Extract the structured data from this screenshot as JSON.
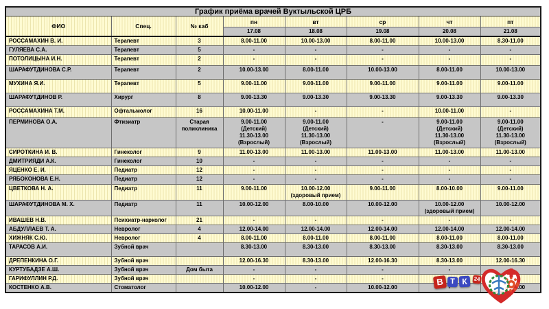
{
  "page": {
    "title": "График приёма врачей Вуктыльской ЦРБ"
  },
  "table": {
    "columns": {
      "fio": "ФИО",
      "spec": "Спец.",
      "cab": "№ каб"
    },
    "days": [
      {
        "label": "пн",
        "date": "17.08"
      },
      {
        "label": "вт",
        "date": "18.08"
      },
      {
        "label": "ср",
        "date": "19.08"
      },
      {
        "label": "чт",
        "date": "20.08"
      },
      {
        "label": "пт",
        "date": "21.08"
      }
    ],
    "rows": [
      {
        "fio": "РОССАМАХИН В. И.",
        "spec": "Терапевт",
        "cab": "3",
        "times": [
          "8.00-11.00",
          "10.00-13.00",
          "8.00-11.00",
          "10.00-13.00",
          "8.30-11.00"
        ]
      },
      {
        "fio": "ГУЛЯЕВА С.А.",
        "spec": "Терапевт",
        "cab": "5",
        "times": [
          "-",
          "-",
          "-",
          "-",
          "-"
        ]
      },
      {
        "fio": "ПОТОЛИЦЫНА И.Н.",
        "spec": "Терапевт",
        "cab": "2",
        "times": [
          "-",
          "-",
          "-",
          "-",
          "-"
        ]
      },
      {
        "fio": "ШАРАФУТДИНОВА С.Р.",
        "spec": "Терапевт",
        "cab": "2",
        "times": [
          "10.00-13.00",
          "8.00-11.00",
          "10.00-13.00",
          "8.00-11.00",
          "10.00-13.00"
        ]
      },
      {
        "fio": "МУХИНА Я.И.",
        "spec": "Терапевт",
        "cab": "5",
        "times": [
          "9.00-11.00",
          "9.00-11.00",
          "9.00-11.00",
          "9.00-11.00",
          "9.00-11.00"
        ]
      },
      {
        "fio": "ШАРАФУТДИНОВ Р.",
        "spec": "Хирург",
        "cab": "8",
        "times": [
          "9.00-13.30",
          "9.00-13.30",
          "9.00-13.30",
          "9.00-13.30",
          "9.00-13.30"
        ]
      },
      {
        "fio": "РОССАМАХИНА Т.М.",
        "spec": "Офтальмолог",
        "cab": "16",
        "times": [
          "10.00-11.00",
          "-",
          "-",
          "10.00-11.00",
          "-"
        ]
      },
      {
        "fio": "ПЕРМИНОВА О.А.",
        "spec": "Фтизиатр",
        "cab": "Старая поликлиника",
        "times": [
          "9.00-11.00\n(Детский)\n11.30-13.00\n(Взрослый)",
          "9.00-11.00\n(Детский)\n11.30-13.00\n(Взрослый)",
          "-",
          "9.00-11.00\n(Детский)\n11.30-13.00\n(Взрослый)",
          "9.00-11.00\n(Детский)\n11.30-13.00\n(Взрослый)"
        ]
      },
      {
        "fio": "СИРОТКИНА И. В.",
        "spec": "Гинеколог",
        "cab": "9",
        "times": [
          "11.00-13.00",
          "11.00-13.00",
          "11.00-13.00",
          "11.00-13.00",
          "11.00-13.00"
        ]
      },
      {
        "fio": "ДМИТРИЯДИ А.К.",
        "spec": "Гинеколог",
        "cab": "10",
        "times": [
          "-",
          "-",
          "-",
          "-",
          "-"
        ]
      },
      {
        "fio": "ЯЦЕНКО Е. И.",
        "spec": "Педиатр",
        "cab": "12",
        "times": [
          "-",
          "-",
          "-",
          "-",
          "-"
        ]
      },
      {
        "fio": "РЯБОКОНОВА Е.Н.",
        "spec": "Педиатр",
        "cab": "12",
        "times": [
          "-",
          "-",
          "-",
          "-",
          "-"
        ]
      },
      {
        "fio": "ЦВЕТКОВА Н. А.",
        "spec": "Педиатр",
        "cab": "11",
        "times": [
          "9.00-11.00",
          "10.00-12.00\n(здоровый прием)",
          "9.00-11.00",
          "8.00-10.00",
          "9.00-11.00"
        ]
      },
      {
        "fio": "ШАРАФУТДИНОВА М. Х.",
        "spec": "Педиатр",
        "cab": "11",
        "times": [
          "10.00-12.00",
          "8.00-10.00",
          "10.00-12.00",
          "10.00-12.00\n(здоровый прием)",
          "10.00-12.00"
        ]
      },
      {
        "fio": "ИВАШЕВ Н.В.",
        "spec": "Психиатр-нарколог",
        "cab": "21",
        "times": [
          "-",
          "-",
          "-",
          "-",
          "-"
        ]
      },
      {
        "fio": "АБДУЛЛАЕВ Т. А.",
        "spec": "Невролог",
        "cab": "4",
        "times": [
          "12.00-14.00",
          "12.00-14.00",
          "12.00-14.00",
          "12.00-14.00",
          "12.00-14.00"
        ]
      },
      {
        "fio": "ХИЖНЯК С.Ю.",
        "spec": "Невролог",
        "cab": "4",
        "times": [
          "8.00-11.00",
          "8.00-11.00",
          "8.00-11.00",
          "8.00-11.00",
          "8.00-11.00"
        ]
      },
      {
        "fio": "ТАРАСОВ А.И.",
        "spec": "Зубной врач",
        "cab": "",
        "times": [
          "8.30-13.00",
          "8.30-13.00",
          "8.30-13.00",
          "8.30-13.00",
          "8.30-13.00"
        ]
      },
      {
        "fio": "ДРЕПЕНКИНА О.Г.",
        "spec": "Зубной врач",
        "cab": "",
        "times": [
          "12.00-16.30",
          "8.30-13.00",
          "12.00-16.30",
          "8.30-13.00",
          "12.00-16.30"
        ]
      },
      {
        "fio": "КУРТУБАДЗЕ А.Ш.",
        "spec": "Зубной врач",
        "cab": "Дом быта",
        "times": [
          "-",
          "-",
          "-",
          "-",
          "-"
        ]
      },
      {
        "fio": "ГАРИФУЛЛИН Р.Д.",
        "spec": "Зубной врач",
        "cab": "",
        "times": [
          "-",
          "-",
          "-",
          "-",
          "-"
        ]
      },
      {
        "fio": "КОСТЕНКО А.В.",
        "spec": "Стоматолог",
        "cab": "",
        "times": [
          "10.00-12.00",
          "-",
          "10.00-12.00",
          "-",
          "10.00-12.00"
        ]
      }
    ]
  },
  "logos": {
    "vtk": {
      "b": "В",
      "t": "Т",
      "k": "К",
      "badge": "24"
    }
  },
  "colors": {
    "row_yellow": "#fffbd2",
    "row_yellow_stripe": "#ece5ae",
    "row_gray": "#c6c6c6",
    "header_gray": "#c6c6c6",
    "logo_red": "#c5251c",
    "logo_blue": "#3b49c0",
    "heart_red": "#d42a2a",
    "wreath_green": "#2e8b3a",
    "gear_orange": "#e0512a",
    "staff_blue": "#3a7bbf"
  }
}
